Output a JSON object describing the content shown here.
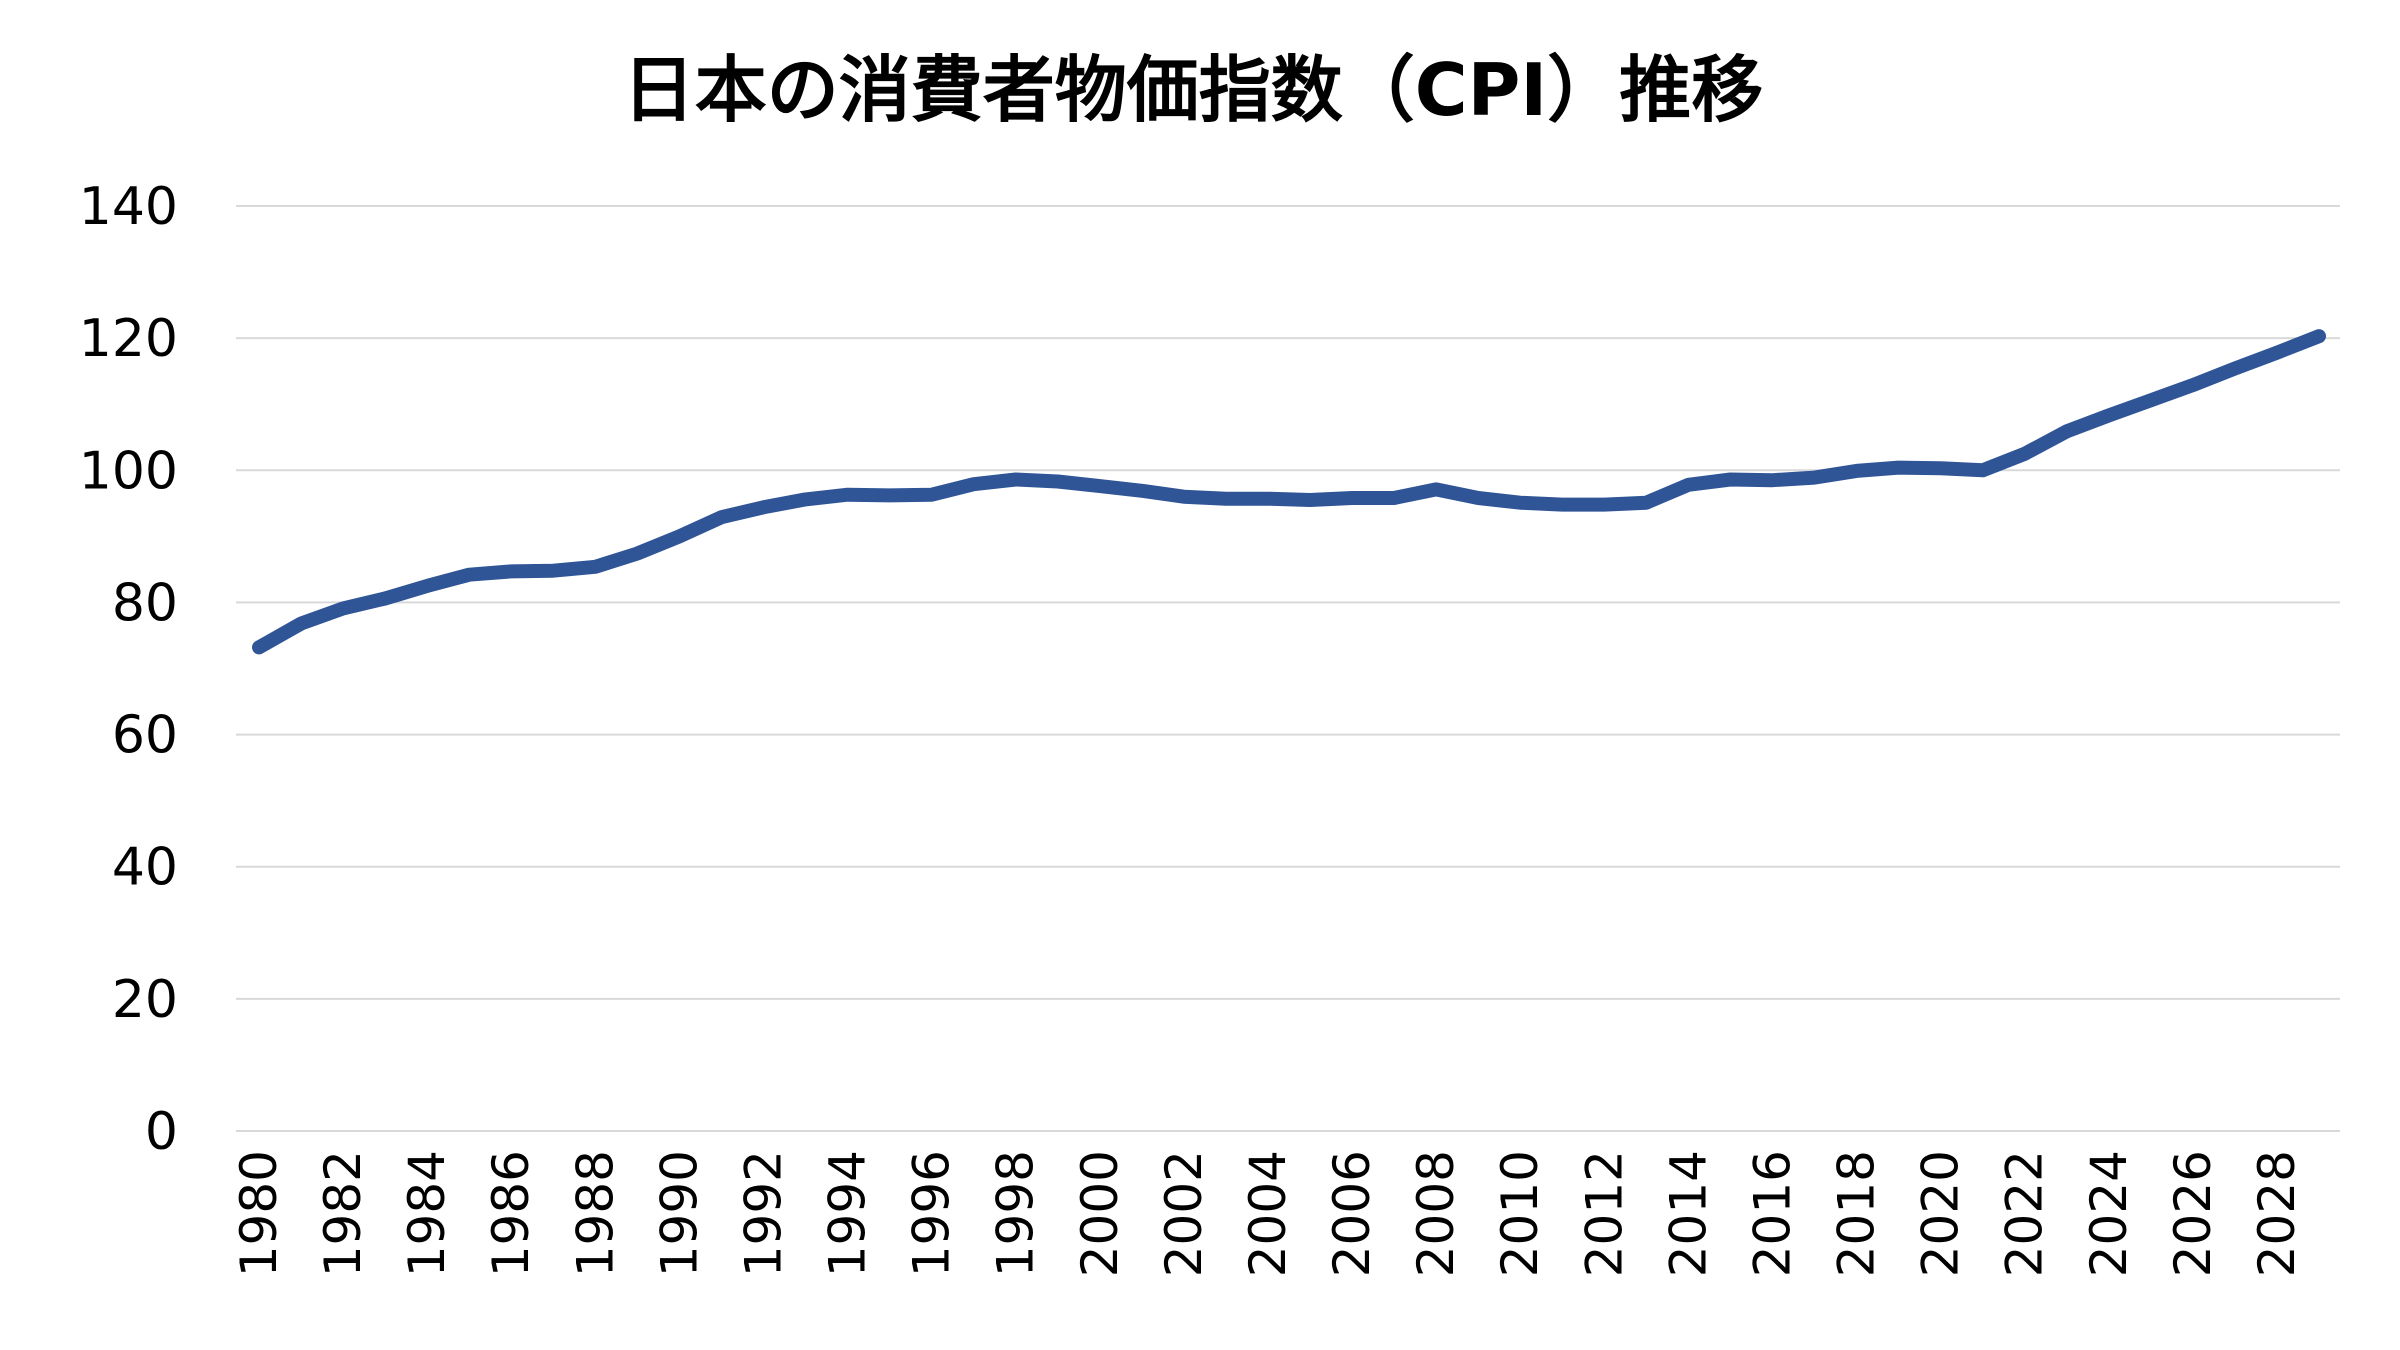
{
  "chart_data": {
    "type": "line",
    "title": "日本の消費者物価指数（CPI）推移",
    "xlabel": "",
    "ylabel": "",
    "ylim": [
      0,
      140
    ],
    "yticks": [
      0,
      20,
      40,
      60,
      80,
      100,
      120,
      140
    ],
    "grid": true,
    "legend": "none",
    "x": [
      1980,
      1981,
      1982,
      1983,
      1984,
      1985,
      1986,
      1987,
      1988,
      1989,
      1990,
      1991,
      1992,
      1993,
      1994,
      1995,
      1996,
      1997,
      1998,
      1999,
      2000,
      2001,
      2002,
      2003,
      2004,
      2005,
      2006,
      2007,
      2008,
      2009,
      2010,
      2011,
      2012,
      2013,
      2014,
      2015,
      2016,
      2017,
      2018,
      2019,
      2020,
      2021,
      2022,
      2023,
      2024,
      2025,
      2026,
      2027,
      2028,
      2029
    ],
    "x_tick_labels": [
      "1980",
      "1982",
      "1984",
      "1986",
      "1988",
      "1990",
      "1992",
      "1994",
      "1996",
      "1998",
      "2000",
      "2002",
      "2004",
      "2006",
      "2008",
      "2010",
      "2012",
      "2014",
      "2016",
      "2018",
      "2020",
      "2022",
      "2024",
      "2026",
      "2028"
    ],
    "series": [
      {
        "name": "CPI",
        "color": "#2f5597",
        "values": [
          73.2,
          76.8,
          79.1,
          80.6,
          82.5,
          84.2,
          84.7,
          84.8,
          85.4,
          87.4,
          90.0,
          92.9,
          94.4,
          95.6,
          96.3,
          96.2,
          96.3,
          97.9,
          98.6,
          98.3,
          97.6,
          96.9,
          96.0,
          95.7,
          95.7,
          95.5,
          95.8,
          95.8,
          97.1,
          95.8,
          95.1,
          94.8,
          94.8,
          95.1,
          97.8,
          98.6,
          98.5,
          98.9,
          99.9,
          100.4,
          100.3,
          100.0,
          102.5,
          105.9,
          108.3,
          110.6,
          112.9,
          115.4,
          117.8,
          120.3
        ]
      }
    ]
  }
}
